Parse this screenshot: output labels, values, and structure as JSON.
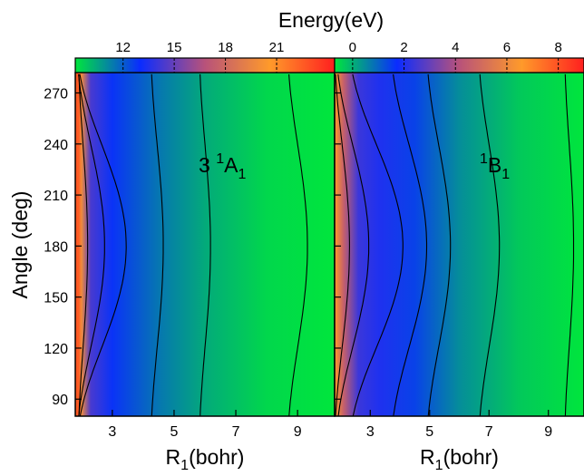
{
  "figure": {
    "colorbar_title": "Energy(eV)",
    "y_axis_label": "Angle (deg)"
  },
  "chart_data": [
    {
      "type": "heatmap",
      "panel_label_main": "3",
      "panel_label_sup": "1",
      "panel_label_base": "A",
      "panel_label_sub": "1",
      "xlabel_main": "R",
      "xlabel_sub": "1",
      "xlabel_rest": "(bohr)",
      "ylabel": "Angle (deg)",
      "xlim": [
        1.8,
        10.2
      ],
      "ylim": [
        80,
        282
      ],
      "x_ticks": [
        3,
        5,
        7,
        9
      ],
      "y_ticks": [
        90,
        120,
        150,
        180,
        210,
        240,
        270
      ],
      "colorbar": {
        "title": "Energy(eV)",
        "range": [
          9.2,
          24.4
        ],
        "ticks": [
          12,
          15,
          18,
          21
        ],
        "colors": [
          "#00e63c",
          "#0a2cff",
          "#b8527a",
          "#ff9a2a",
          "#ff1f1f"
        ]
      },
      "color_profile": [
        [
          1.9,
          0.88
        ],
        [
          2.0,
          0.7
        ],
        [
          2.3,
          0.34
        ],
        [
          3.0,
          0.24
        ],
        [
          4.5,
          0.15
        ],
        [
          6,
          0.08
        ],
        [
          8,
          0.02
        ],
        [
          10.2,
          0.0
        ]
      ],
      "contours": [
        {
          "x0": 2.05,
          "amp": 0.15
        },
        {
          "x0": 2.3,
          "amp": 0.45
        },
        {
          "x0": 2.65,
          "amp": 0.8
        },
        {
          "x0": 4.45,
          "amp": 0.2
        },
        {
          "x0": 6.0,
          "amp": 0.18
        },
        {
          "x0": 9.0,
          "amp": 0.32
        }
      ]
    },
    {
      "type": "heatmap",
      "panel_label_main": "",
      "panel_label_sup": "1",
      "panel_label_base": "B",
      "panel_label_sub": "1",
      "xlabel_main": "R",
      "xlabel_sub": "1",
      "xlabel_rest": "(bohr)",
      "xlim": [
        1.8,
        10.2
      ],
      "ylim": [
        80,
        282
      ],
      "x_ticks": [
        3,
        5,
        7,
        9
      ],
      "y_ticks": [
        90,
        120,
        150,
        180,
        210,
        240,
        270
      ],
      "colorbar": {
        "range": [
          -0.7,
          9.0
        ],
        "ticks": [
          0,
          2,
          4,
          6,
          8
        ],
        "colors": [
          "#00e63c",
          "#0a2cff",
          "#b8527a",
          "#ff9a2a",
          "#ff1f1f"
        ]
      },
      "color_profile": [
        [
          1.85,
          0.72
        ],
        [
          2.1,
          0.55
        ],
        [
          2.6,
          0.32
        ],
        [
          3.3,
          0.28
        ],
        [
          4.5,
          0.22
        ],
        [
          6,
          0.12
        ],
        [
          8,
          0.04
        ],
        [
          10.2,
          0.0
        ]
      ],
      "contours": [
        {
          "x0": 2.05,
          "amp": 0.25
        },
        {
          "x0": 2.4,
          "amp": 0.55
        },
        {
          "x0": 3.2,
          "amp": 0.9
        },
        {
          "x0": 4.3,
          "amp": 0.6
        },
        {
          "x0": 5.3,
          "amp": 0.4
        },
        {
          "x0": 7.0,
          "amp": 0.35
        },
        {
          "x0": 9.7,
          "amp": 0.15
        }
      ]
    }
  ]
}
